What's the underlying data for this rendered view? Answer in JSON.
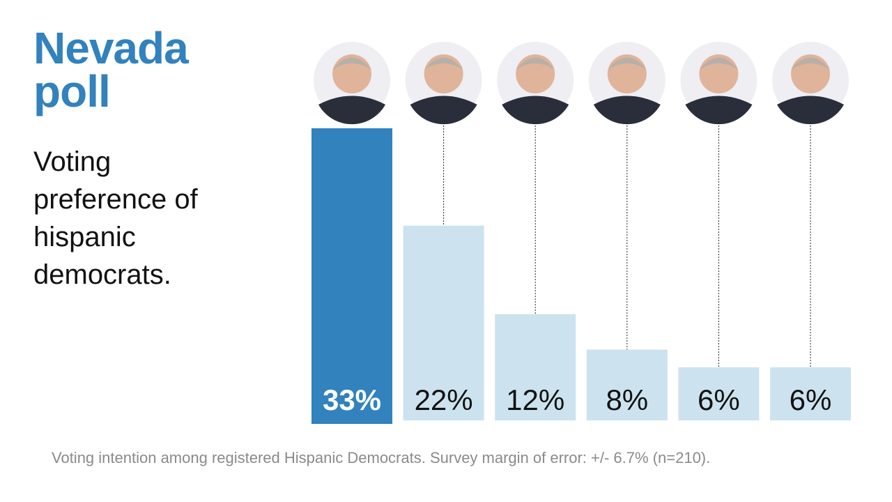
{
  "header": {
    "title_line1": "Nevada",
    "title_line2": "poll",
    "subtitle": "Voting preference of hispanic democrats."
  },
  "footer": "Voting intention among registered Hispanic Democrats. Survey margin of error: +/- 6.7% (n=210).",
  "chart_data": {
    "type": "bar",
    "categories": [
      "candidate-1",
      "candidate-2",
      "candidate-3",
      "candidate-4",
      "candidate-5",
      "candidate-6"
    ],
    "values": [
      33,
      22,
      12,
      8,
      6,
      6
    ],
    "labels": [
      "33%",
      "22%",
      "12%",
      "8%",
      "6%",
      "6%"
    ],
    "ylim": [
      0,
      33
    ],
    "grid": false,
    "colors": {
      "highlight": "#3182bd",
      "default": "#cce3ef",
      "highlight_label": "#ffffff",
      "default_label": "#111111"
    },
    "category_icons": [
      "candidate-photo",
      "candidate-photo",
      "candidate-photo",
      "candidate-photo",
      "candidate-photo",
      "candidate-photo"
    ]
  }
}
